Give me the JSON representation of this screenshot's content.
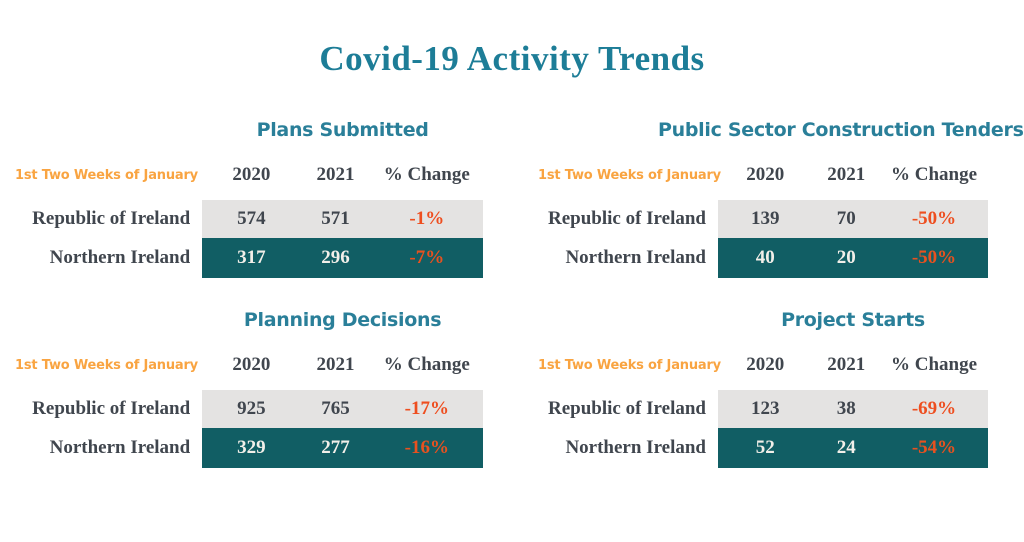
{
  "title": "Covid-19 Activity Trends",
  "period_label": "1st Two Weeks of January",
  "columns": [
    "2020",
    "2021",
    "% Change"
  ],
  "tables": [
    {
      "title": "Plans Submitted",
      "rows": [
        {
          "label": "Republic of Ireland",
          "v2020": "574",
          "v2021": "571",
          "change": "-1%"
        },
        {
          "label": "Northern Ireland",
          "v2020": "317",
          "v2021": "296",
          "change": "-7%"
        }
      ]
    },
    {
      "title": "Public Sector Construction Tenders",
      "rows": [
        {
          "label": "Republic of Ireland",
          "v2020": "139",
          "v2021": "70",
          "change": "-50%"
        },
        {
          "label": "Northern Ireland",
          "v2020": "40",
          "v2021": "20",
          "change": "-50%"
        }
      ]
    },
    {
      "title": "Planning Decisions",
      "rows": [
        {
          "label": "Republic of Ireland",
          "v2020": "925",
          "v2021": "765",
          "change": "-17%"
        },
        {
          "label": "Northern Ireland",
          "v2020": "329",
          "v2021": "277",
          "change": "-16%"
        }
      ]
    },
    {
      "title": "Project Starts",
      "rows": [
        {
          "label": "Republic of Ireland",
          "v2020": "123",
          "v2021": "38",
          "change": "-69%"
        },
        {
          "label": "Northern Ireland",
          "v2020": "52",
          "v2021": "24",
          "change": "-54%"
        }
      ]
    }
  ],
  "colors": {
    "title_teal": "#1d7d97",
    "table_title_teal": "#2a7f99",
    "period_orange": "#f9a441",
    "dark_text": "#40464e",
    "row_gray_bg": "#e4e3e2",
    "row_teal_bg": "#115e64",
    "change_red": "#ee4e1f",
    "teal_row_text": "#f2efe9"
  },
  "chart_data": [
    {
      "type": "table",
      "title": "Plans Submitted",
      "columns": [
        "1st Two Weeks of January",
        "2020",
        "2021",
        "% Change"
      ],
      "rows": [
        [
          "Republic of Ireland",
          574,
          571,
          "-1%"
        ],
        [
          "Northern Ireland",
          317,
          296,
          "-7%"
        ]
      ]
    },
    {
      "type": "table",
      "title": "Public Sector Construction Tenders",
      "columns": [
        "1st Two Weeks of January",
        "2020",
        "2021",
        "% Change"
      ],
      "rows": [
        [
          "Republic of Ireland",
          139,
          70,
          "-50%"
        ],
        [
          "Northern Ireland",
          40,
          20,
          "-50%"
        ]
      ]
    },
    {
      "type": "table",
      "title": "Planning Decisions",
      "columns": [
        "1st Two Weeks of January",
        "2020",
        "2021",
        "% Change"
      ],
      "rows": [
        [
          "Republic of Ireland",
          925,
          765,
          "-17%"
        ],
        [
          "Northern Ireland",
          329,
          277,
          "-16%"
        ]
      ]
    },
    {
      "type": "table",
      "title": "Project Starts",
      "columns": [
        "1st Two Weeks of January",
        "2020",
        "2021",
        "% Change"
      ],
      "rows": [
        [
          "Republic of Ireland",
          123,
          38,
          "-69%"
        ],
        [
          "Northern Ireland",
          52,
          24,
          "-54%"
        ]
      ]
    }
  ]
}
